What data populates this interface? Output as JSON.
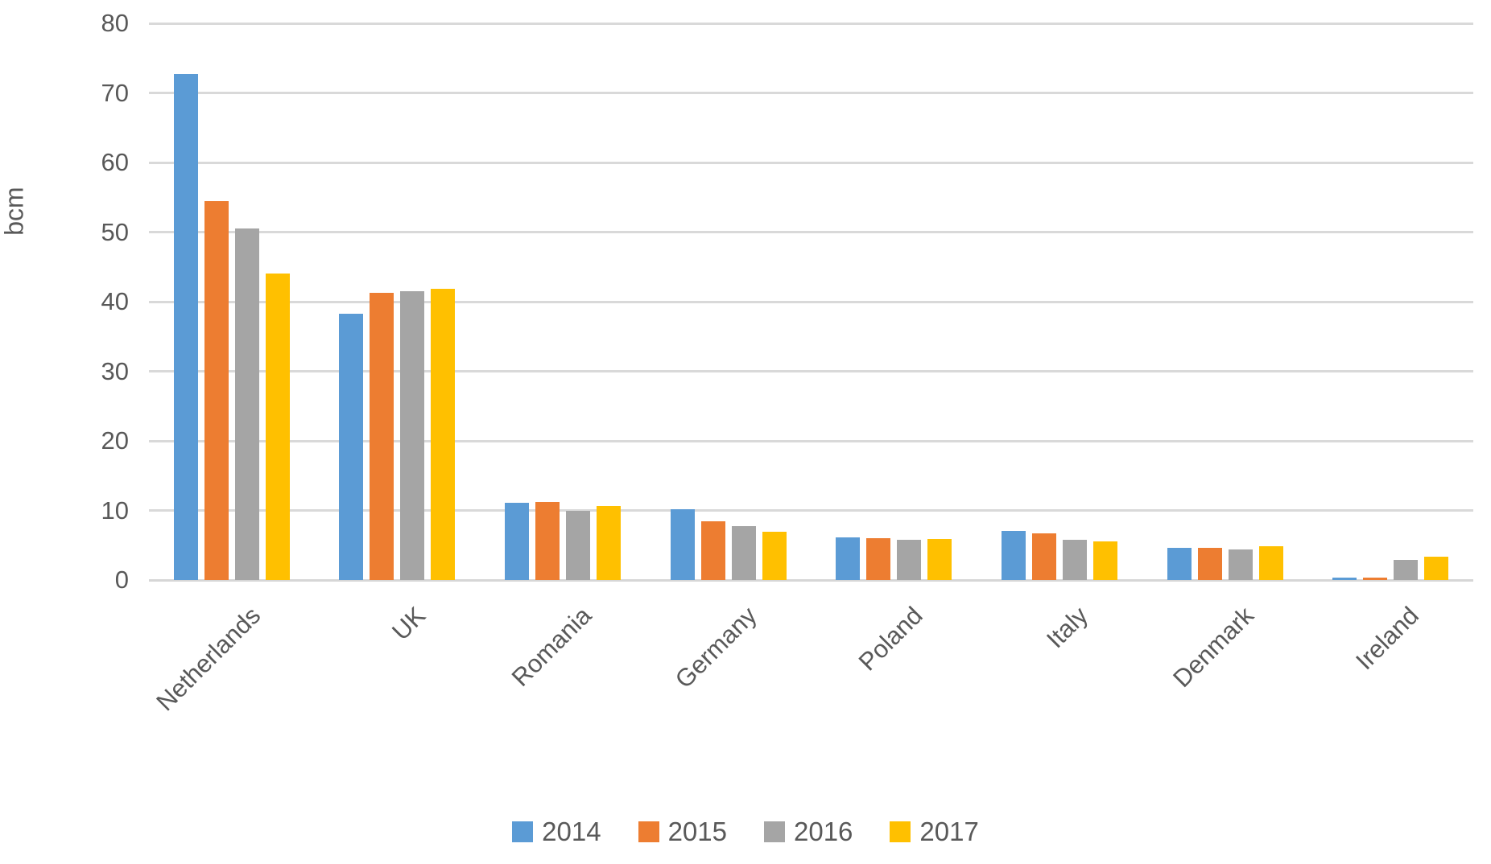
{
  "chart_data": {
    "type": "bar",
    "title": "",
    "ylabel": "bcm",
    "xlabel": "",
    "ylim": [
      0,
      80
    ],
    "ytick_step": 10,
    "grid": true,
    "legend_position": "bottom",
    "background_color": "#ffffff",
    "gridline_color": "#d9d9d9",
    "text_color": "#595959",
    "categories": [
      "Netherlands",
      "UK",
      "Romania",
      "Germany",
      "Poland",
      "Italy",
      "Denmark",
      "Ireland"
    ],
    "series": [
      {
        "name": "2014",
        "color": "#5B9BD5",
        "values": [
          72.7,
          38.3,
          11.1,
          10.2,
          6.1,
          7.1,
          4.6,
          0.4
        ]
      },
      {
        "name": "2015",
        "color": "#ED7D31",
        "values": [
          54.4,
          41.3,
          11.2,
          8.4,
          6.0,
          6.7,
          4.6,
          0.3
        ]
      },
      {
        "name": "2016",
        "color": "#A5A5A5",
        "values": [
          50.5,
          41.5,
          10.0,
          7.7,
          5.8,
          5.8,
          4.4,
          2.9
        ]
      },
      {
        "name": "2017",
        "color": "#FFC000",
        "values": [
          44.0,
          41.8,
          10.6,
          6.9,
          5.9,
          5.5,
          4.9,
          3.3
        ]
      }
    ]
  }
}
